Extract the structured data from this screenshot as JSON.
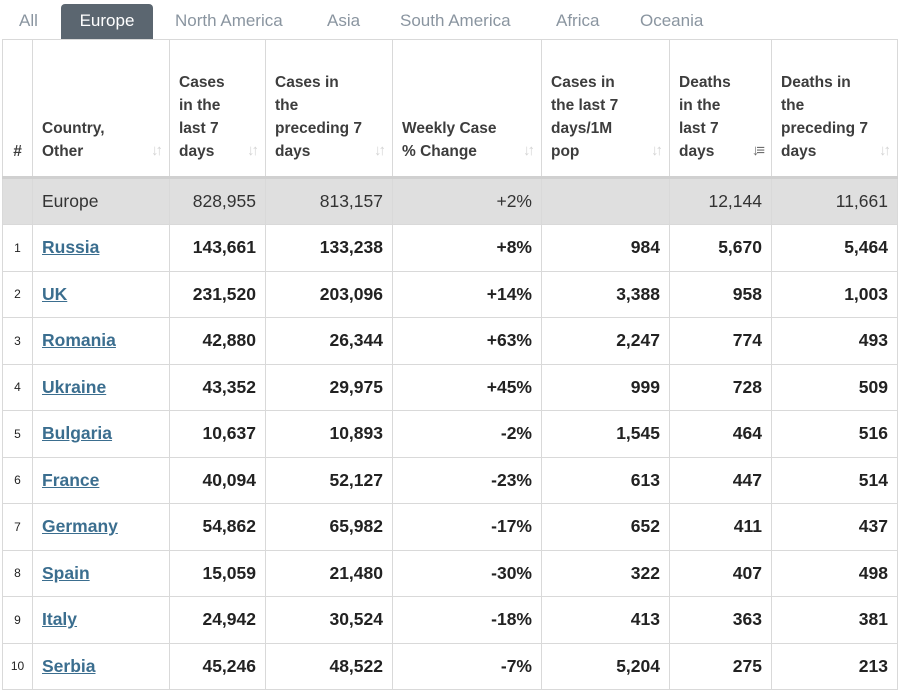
{
  "tabs": [
    {
      "label": "All",
      "active": false
    },
    {
      "label": "Europe",
      "active": true
    },
    {
      "label": "North America",
      "active": false
    },
    {
      "label": "Asia",
      "active": false
    },
    {
      "label": "South America",
      "active": false
    },
    {
      "label": "Africa",
      "active": false
    },
    {
      "label": "Oceania",
      "active": false
    }
  ],
  "headers": {
    "index": "#",
    "country": "Country, Other",
    "cases7": "Cases in the last 7 days",
    "casesPrev": "Cases in the preceding 7 days",
    "weekly": "Weekly Case % Change",
    "per1m": "Cases in the last 7 days/1M pop",
    "deaths7": "Deaths in the last 7 days",
    "deathsPrev": "Deaths in the preceding 7 days"
  },
  "sort_glyphs": {
    "inactive": "↓↑",
    "active": "↓≡"
  },
  "total": {
    "country": "Europe",
    "cases7": "828,955",
    "casesPrev": "813,157",
    "weekly": "+2%",
    "per1m": "",
    "deaths7": "12,144",
    "deathsPrev": "11,661"
  },
  "rows": [
    {
      "index": "1",
      "country": "Russia",
      "cases7": "143,661",
      "casesPrev": "133,238",
      "weekly": "+8%",
      "per1m": "984",
      "deaths7": "5,670",
      "deathsPrev": "5,464"
    },
    {
      "index": "2",
      "country": "UK",
      "cases7": "231,520",
      "casesPrev": "203,096",
      "weekly": "+14%",
      "per1m": "3,388",
      "deaths7": "958",
      "deathsPrev": "1,003"
    },
    {
      "index": "3",
      "country": "Romania",
      "cases7": "42,880",
      "casesPrev": "26,344",
      "weekly": "+63%",
      "per1m": "2,247",
      "deaths7": "774",
      "deathsPrev": "493"
    },
    {
      "index": "4",
      "country": "Ukraine",
      "cases7": "43,352",
      "casesPrev": "29,975",
      "weekly": "+45%",
      "per1m": "999",
      "deaths7": "728",
      "deathsPrev": "509"
    },
    {
      "index": "5",
      "country": "Bulgaria",
      "cases7": "10,637",
      "casesPrev": "10,893",
      "weekly": "-2%",
      "per1m": "1,545",
      "deaths7": "464",
      "deathsPrev": "516"
    },
    {
      "index": "6",
      "country": "France",
      "cases7": "40,094",
      "casesPrev": "52,127",
      "weekly": "-23%",
      "per1m": "613",
      "deaths7": "447",
      "deathsPrev": "514"
    },
    {
      "index": "7",
      "country": "Germany",
      "cases7": "54,862",
      "casesPrev": "65,982",
      "weekly": "-17%",
      "per1m": "652",
      "deaths7": "411",
      "deathsPrev": "437"
    },
    {
      "index": "8",
      "country": "Spain",
      "cases7": "15,059",
      "casesPrev": "21,480",
      "weekly": "-30%",
      "per1m": "322",
      "deaths7": "407",
      "deathsPrev": "498"
    },
    {
      "index": "9",
      "country": "Italy",
      "cases7": "24,942",
      "casesPrev": "30,524",
      "weekly": "-18%",
      "per1m": "413",
      "deaths7": "363",
      "deathsPrev": "381"
    },
    {
      "index": "10",
      "country": "Serbia",
      "cases7": "45,246",
      "casesPrev": "48,522",
      "weekly": "-7%",
      "per1m": "5,204",
      "deaths7": "275",
      "deathsPrev": "213"
    }
  ],
  "colors": {
    "active_tab_bg": "#5b6670",
    "inactive_tab_text": "#8a95a0",
    "link": "#3b6e8f",
    "total_row_bg": "#dfdfdf"
  }
}
